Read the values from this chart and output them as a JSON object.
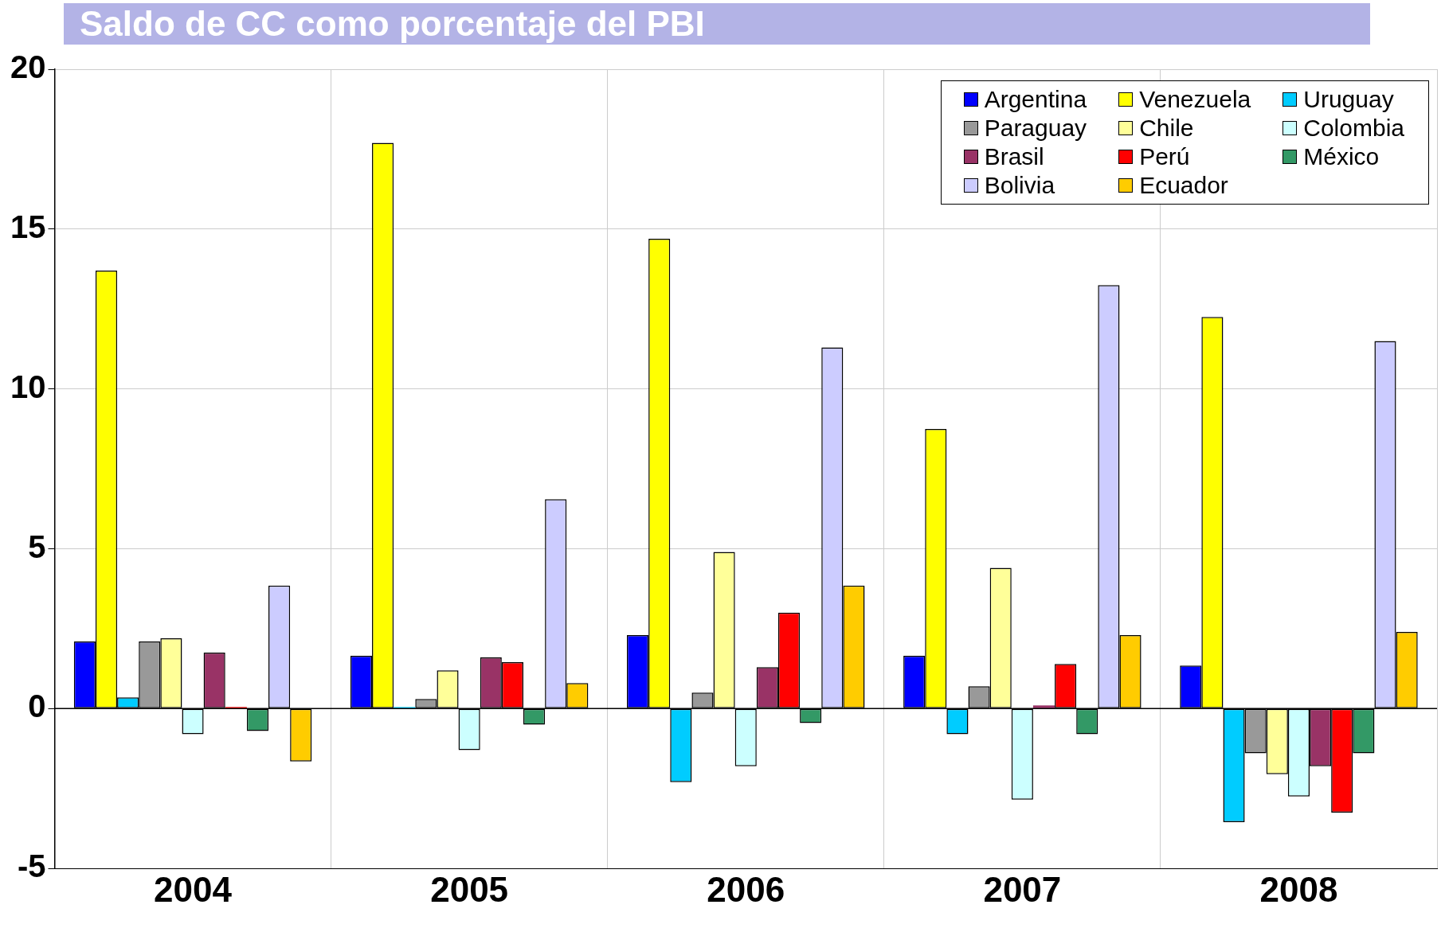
{
  "chart_data": {
    "type": "bar",
    "title": "Saldo de CC como porcentaje del PBI",
    "categories": [
      "2004",
      "2005",
      "2006",
      "2007",
      "2008"
    ],
    "series": [
      {
        "name": "Argentina",
        "color": "#0000ff",
        "values": [
          2.1,
          1.65,
          2.3,
          1.65,
          1.35
        ]
      },
      {
        "name": "Venezuela",
        "color": "#ffff00",
        "values": [
          13.7,
          17.7,
          14.7,
          8.75,
          12.25
        ]
      },
      {
        "name": "Uruguay",
        "color": "#00ccff",
        "values": [
          0.35,
          0.05,
          -2.3,
          -0.8,
          -3.55
        ]
      },
      {
        "name": "Paraguay",
        "color": "#999999",
        "values": [
          2.1,
          0.3,
          0.5,
          0.7,
          -1.4
        ]
      },
      {
        "name": "Chile",
        "color": "#ffff99",
        "values": [
          2.2,
          1.2,
          4.9,
          4.4,
          -2.05
        ]
      },
      {
        "name": "Colombia",
        "color": "#ccffff",
        "values": [
          -0.8,
          -1.3,
          -1.8,
          -2.85,
          -2.75
        ]
      },
      {
        "name": "Brasil",
        "color": "#993366",
        "values": [
          1.75,
          1.6,
          1.3,
          0.1,
          -1.8
        ]
      },
      {
        "name": "Perú",
        "color": "#ff0000",
        "values": [
          0.05,
          1.45,
          3.0,
          1.4,
          -3.25
        ]
      },
      {
        "name": "México",
        "color": "#339966",
        "values": [
          -0.7,
          -0.5,
          -0.45,
          -0.8,
          -1.4
        ]
      },
      {
        "name": "Bolivia",
        "color": "#ccccff",
        "values": [
          3.85,
          6.55,
          11.3,
          13.25,
          11.5
        ]
      },
      {
        "name": "Ecuador",
        "color": "#ffcc00",
        "values": [
          -1.65,
          0.8,
          3.85,
          2.3,
          2.4
        ]
      }
    ],
    "ylim": [
      -5,
      20
    ],
    "yticks": [
      -5,
      0,
      5,
      10,
      15,
      20
    ],
    "grid": true,
    "legend": "top right"
  }
}
